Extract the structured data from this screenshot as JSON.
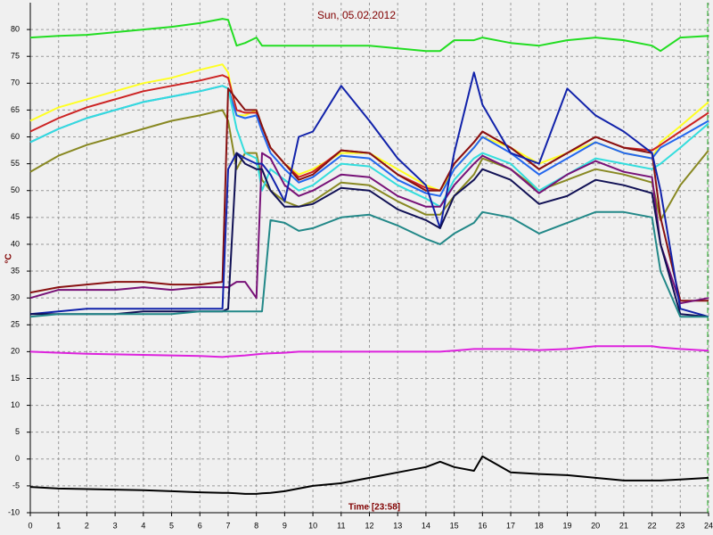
{
  "chart_data": {
    "type": "line",
    "title": "Sun, 05.02.2012",
    "xlabel": "Time [23:58]",
    "ylabel": "°C",
    "x": [
      0,
      1,
      2,
      3,
      4,
      5,
      6,
      6.8,
      7,
      7.3,
      7.6,
      8,
      8.2,
      8.5,
      9,
      9.5,
      10,
      11,
      12,
      13,
      14,
      14.5,
      15,
      15.7,
      16,
      17,
      18,
      19,
      20,
      21,
      22,
      22.3,
      23,
      24
    ],
    "xlim": [
      0,
      24
    ],
    "xticks": [
      0,
      1,
      2,
      3,
      4,
      5,
      6,
      7,
      8,
      9,
      10,
      11,
      12,
      13,
      14,
      15,
      16,
      17,
      18,
      19,
      20,
      21,
      22,
      23,
      24
    ],
    "ylim": [
      -10,
      85
    ],
    "yticks": [
      -10,
      -5,
      0,
      5,
      10,
      15,
      20,
      25,
      30,
      35,
      40,
      45,
      50,
      55,
      60,
      65,
      70,
      75,
      80
    ],
    "grid": true,
    "series": [
      {
        "color": "#22dd22",
        "values": [
          78.5,
          78.8,
          79,
          79.5,
          80,
          80.5,
          81.2,
          82,
          81.8,
          77,
          77.5,
          78.5,
          77,
          77,
          77,
          77,
          77,
          77,
          77,
          76.5,
          76,
          76,
          78,
          78,
          78.5,
          77.5,
          77,
          78,
          78.5,
          78,
          77,
          76,
          78.5,
          78.8
        ]
      },
      {
        "color": "#ffff22",
        "values": [
          63,
          65.5,
          67,
          68.5,
          70,
          71,
          72.5,
          73.5,
          72,
          64,
          64,
          65,
          62,
          58,
          55,
          53,
          54,
          57,
          57,
          54,
          51,
          50,
          54,
          58,
          60,
          58,
          55,
          57,
          59,
          57,
          56,
          59,
          62,
          66.5
        ]
      },
      {
        "color": "#cc2222",
        "values": [
          61,
          63.5,
          65.5,
          67,
          68.5,
          69.5,
          70.5,
          71.5,
          71,
          65,
          64.5,
          64.5,
          62,
          58,
          55,
          52.5,
          53.5,
          57.5,
          57,
          53,
          50.5,
          50,
          55,
          59,
          61,
          58,
          54,
          57,
          60,
          58,
          57.5,
          58.5,
          61,
          64.5
        ]
      },
      {
        "color": "#2266ee",
        "values": [
          59,
          61.5,
          63.5,
          65,
          66.5,
          67.5,
          68.5,
          69.5,
          69,
          64,
          63.5,
          64,
          61,
          57,
          54,
          51.5,
          52.5,
          56.5,
          56,
          52,
          49.5,
          49,
          54,
          58,
          60,
          57,
          53,
          56,
          59,
          57,
          56,
          58,
          60,
          63
        ]
      },
      {
        "color": "#888822",
        "values": [
          53.5,
          56.5,
          58.5,
          60,
          61.5,
          63,
          64,
          65,
          63,
          54,
          57,
          57,
          52,
          50,
          48,
          47,
          48,
          51.5,
          51,
          48,
          45.5,
          45.5,
          49,
          53,
          56,
          54,
          50,
          52,
          54,
          53,
          51.5,
          44.5,
          51,
          57.5
        ]
      },
      {
        "color": "#33dddd",
        "values": [
          59,
          61.5,
          63.5,
          65,
          66.5,
          67.5,
          68.5,
          69.5,
          69,
          61.5,
          57,
          56,
          50,
          54,
          52,
          50,
          51,
          55,
          54.5,
          51,
          48.5,
          47,
          52,
          56,
          57,
          55,
          50,
          53,
          56,
          55,
          54,
          55,
          58,
          62.5
        ]
      },
      {
        "color": "#881111",
        "values": [
          31,
          32,
          32.5,
          33,
          33,
          32.5,
          32.5,
          33,
          69,
          67,
          65,
          65,
          62,
          58,
          55,
          52,
          53,
          57.5,
          57,
          53,
          50,
          50,
          55,
          59,
          61,
          58,
          54,
          57,
          60,
          58,
          57,
          45,
          29.5,
          29.5
        ]
      },
      {
        "color": "#771177",
        "values": [
          30,
          31.5,
          31.5,
          31.5,
          32,
          31.5,
          32,
          32,
          32,
          33,
          33,
          30,
          57,
          56,
          51,
          49,
          50,
          53,
          52.5,
          49,
          47,
          47,
          51,
          55,
          56.5,
          54,
          49.5,
          53,
          55.5,
          53.5,
          52.5,
          40,
          29,
          30
        ]
      },
      {
        "color": "#1122aa",
        "values": [
          27,
          27.5,
          28,
          28,
          28,
          28,
          28,
          28,
          54,
          57,
          56,
          55,
          55,
          53,
          48,
          60,
          61,
          69.5,
          63,
          56,
          51,
          43,
          57,
          72,
          66,
          57,
          55,
          69,
          64,
          61,
          57,
          50,
          28,
          26.5
        ]
      },
      {
        "color": "#111155",
        "values": [
          27,
          27,
          27,
          27,
          27.5,
          27.5,
          27.5,
          27.5,
          28,
          57,
          55,
          54,
          54,
          50,
          47,
          47,
          47.5,
          50.5,
          50,
          46.5,
          44.5,
          43,
          49,
          52,
          54,
          52,
          47.5,
          49,
          52,
          51,
          49.5,
          40,
          27,
          26.5
        ]
      },
      {
        "color": "#228888",
        "values": [
          26.5,
          27,
          27,
          27,
          27,
          27,
          27.5,
          27.5,
          27.5,
          27.5,
          27.5,
          27.5,
          27.5,
          44.5,
          44,
          42.5,
          43,
          45,
          45.5,
          43.5,
          41,
          40,
          42,
          44,
          46,
          45,
          42,
          44,
          46,
          46,
          45,
          35,
          26.5,
          26.5
        ]
      },
      {
        "color": "#dd22dd",
        "values": [
          20,
          19.8,
          19.6,
          19.5,
          19.4,
          19.3,
          19.2,
          19,
          19.1,
          19.2,
          19.3,
          19.5,
          19.6,
          19.7,
          19.8,
          20,
          20,
          20,
          20,
          20,
          20,
          20,
          20.2,
          20.5,
          20.5,
          20.5,
          20.3,
          20.5,
          21,
          21,
          21,
          20.8,
          20.5,
          20.2
        ]
      },
      {
        "color": "#000000",
        "values": [
          -5.2,
          -5.5,
          -5.6,
          -5.7,
          -5.8,
          -6,
          -6.2,
          -6.3,
          -6.3,
          -6.4,
          -6.5,
          -6.5,
          -6.4,
          -6.3,
          -6,
          -5.5,
          -5,
          -4.5,
          -3.5,
          -2.5,
          -1.5,
          -0.5,
          -1.5,
          -2.2,
          0.5,
          -2.5,
          -2.8,
          -3,
          -3.5,
          -4,
          -4,
          -4,
          -3.8,
          -3.5
        ]
      }
    ]
  }
}
